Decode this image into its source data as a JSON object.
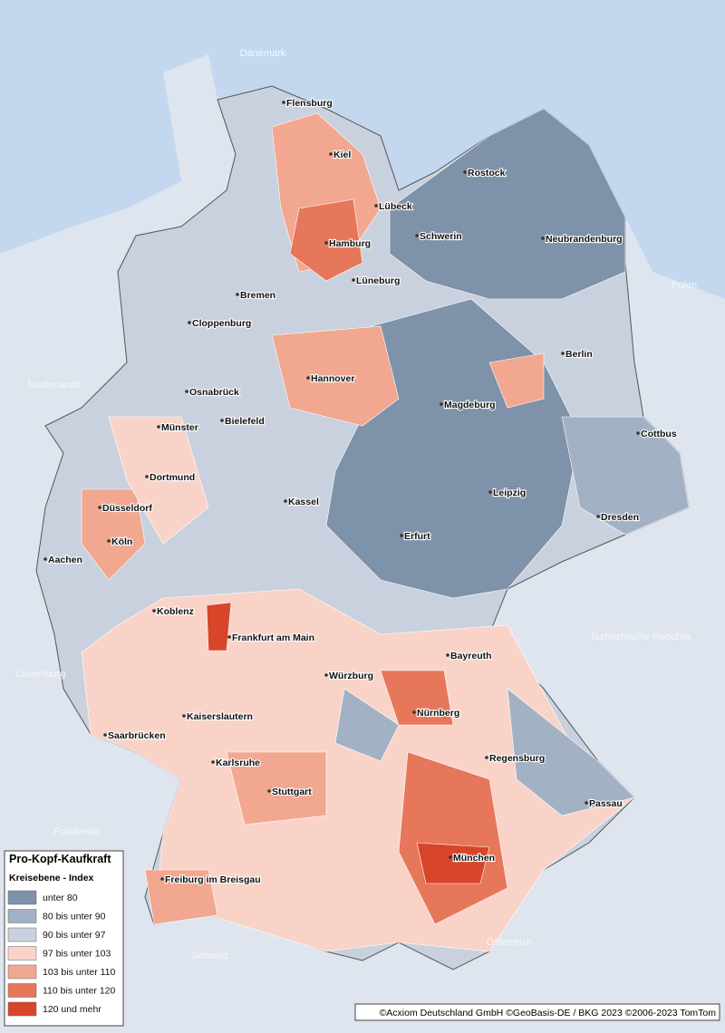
{
  "countries": [
    "Dänemark",
    "Polen",
    "Niederlande",
    "Luxemburg",
    "Frankreich",
    "Tschechische Republik",
    "Schweiz",
    "Österreich"
  ],
  "cities": [
    "Flensburg",
    "Kiel",
    "Rostock",
    "Lübeck",
    "Hamburg",
    "Schwerin",
    "Neubrandenburg",
    "Bremen",
    "Lüneburg",
    "Cloppenburg",
    "Berlin",
    "Hannover",
    "Osnabrück",
    "Magdeburg",
    "Münster",
    "Bielefeld",
    "Cottbus",
    "Dortmund",
    "Kassel",
    "Leipzig",
    "Düsseldorf",
    "Dresden",
    "Köln",
    "Erfurt",
    "Aachen",
    "Koblenz",
    "Frankfurt am Main",
    "Bayreuth",
    "Würzburg",
    "Kaiserslautern",
    "Nürnberg",
    "Saarbrücken",
    "Regensburg",
    "Karlsruhe",
    "Stuttgart",
    "Passau",
    "München",
    "Freiburg im Breisgau"
  ],
  "legend": {
    "title": "Pro-Kopf-Kaufkraft",
    "subtitle": "Kreisebene - Index",
    "items": [
      {
        "label": "unter 80",
        "color": "#7e92a9"
      },
      {
        "label": "80 bis unter 90",
        "color": "#a3b1c4"
      },
      {
        "label": "90 bis unter 97",
        "color": "#c9d1de"
      },
      {
        "label": "97 bis unter 103",
        "color": "#fad3c8"
      },
      {
        "label": "103 bis unter 110",
        "color": "#f2a790"
      },
      {
        "label": "110 bis unter 120",
        "color": "#e6775a"
      },
      {
        "label": "120 und mehr",
        "color": "#d8462a"
      }
    ]
  },
  "copyright": "©Acxiom Deutschland GmbH ©GeoBasis-DE / BKG 2023 ©2006-2023 TomTom"
}
